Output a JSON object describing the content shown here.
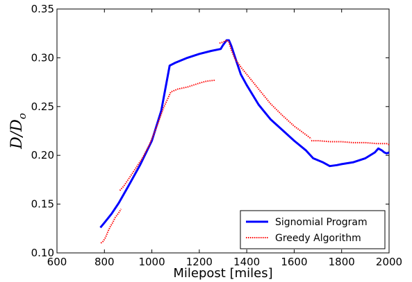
{
  "chart_data": {
    "type": "line",
    "xlabel": "Milepost [miles]",
    "ylabel_main": "D",
    "ylabel_sep": "/",
    "ylabel_base": "D",
    "ylabel_sub": "o",
    "xlim": [
      600,
      2000
    ],
    "ylim": [
      0.1,
      0.35
    ],
    "xticks": [
      600,
      800,
      1000,
      1200,
      1400,
      1600,
      1800,
      2000
    ],
    "xtick_labels": [
      "600",
      "800",
      "1000",
      "1200",
      "1400",
      "1600",
      "1800",
      "2000"
    ],
    "yticks": [
      0.1,
      0.15,
      0.2,
      0.25,
      0.3,
      0.35
    ],
    "ytick_labels": [
      "0.10",
      "0.15",
      "0.20",
      "0.25",
      "0.30",
      "0.35"
    ],
    "grid": false,
    "legend_position": "lower-right",
    "series": [
      {
        "name": "Signomial Program",
        "color": "#0000ff",
        "style": "solid",
        "x": [
          783,
          800,
          830,
          860,
          900,
          950,
          1000,
          1040,
          1075,
          1100,
          1150,
          1200,
          1250,
          1290,
          1300,
          1315,
          1325,
          1335,
          1350,
          1375,
          1400,
          1450,
          1500,
          1550,
          1600,
          1650,
          1680,
          1720,
          1750,
          1780,
          1800,
          1850,
          1900,
          1940,
          1955,
          1970,
          1980,
          1990,
          2000
        ],
        "y": [
          0.126,
          0.131,
          0.14,
          0.151,
          0.168,
          0.19,
          0.215,
          0.246,
          0.292,
          0.295,
          0.3,
          0.304,
          0.307,
          0.309,
          0.313,
          0.318,
          0.318,
          0.312,
          0.301,
          0.283,
          0.272,
          0.252,
          0.237,
          0.226,
          0.215,
          0.205,
          0.197,
          0.193,
          0.189,
          0.19,
          0.191,
          0.193,
          0.197,
          0.203,
          0.207,
          0.205,
          0.203,
          0.202,
          0.203
        ]
      },
      {
        "name": "Greedy Algorithm",
        "color": "#ff0000",
        "style": "dotted",
        "segments": [
          {
            "x": [
              785,
              795,
              805,
              815,
              825,
              835,
              845,
              860,
              870
            ],
            "y": [
              0.11,
              0.112,
              0.116,
              0.122,
              0.127,
              0.131,
              0.136,
              0.141,
              0.145
            ]
          },
          {
            "x": [
              865,
              880,
              900,
              930,
              960,
              990,
              1020,
              1050,
              1080,
              1110,
              1150,
              1200,
              1230,
              1265
            ],
            "y": [
              0.164,
              0.168,
              0.175,
              0.186,
              0.197,
              0.211,
              0.229,
              0.249,
              0.265,
              0.268,
              0.27,
              0.274,
              0.276,
              0.277
            ]
          },
          {
            "x": [
              1285,
              1300,
              1315,
              1325,
              1335,
              1350,
              1380,
              1420,
              1460,
              1500,
              1550,
              1600,
              1650,
              1672
            ],
            "y": [
              0.315,
              0.316,
              0.318,
              0.316,
              0.308,
              0.299,
              0.289,
              0.277,
              0.265,
              0.253,
              0.241,
              0.23,
              0.221,
              0.217
            ]
          },
          {
            "x": [
              1672,
              1700,
              1750,
              1800,
              1850,
              1900,
              1950,
              1990,
              2000
            ],
            "y": [
              0.215,
              0.215,
              0.214,
              0.214,
              0.213,
              0.213,
              0.212,
              0.212,
              0.211
            ]
          }
        ]
      }
    ]
  }
}
